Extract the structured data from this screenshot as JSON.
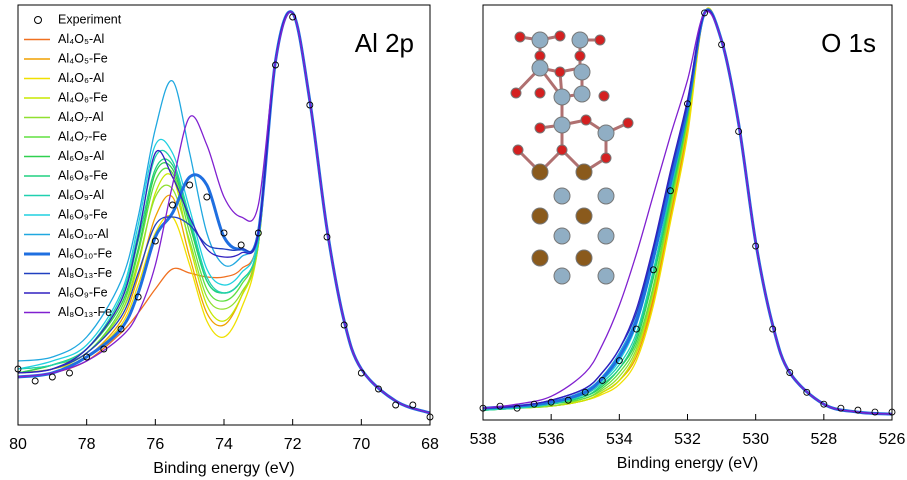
{
  "chart_data": [
    {
      "type": "line",
      "title": "Al 2p",
      "xlabel": "Binding energy (eV)",
      "xlim": [
        80,
        68
      ],
      "xticks": [
        80,
        78,
        76,
        74,
        72,
        70,
        68
      ],
      "ylim": [
        0,
        105
      ],
      "legend": "upper left",
      "x": [
        80,
        79,
        78,
        77,
        76.5,
        76,
        75.5,
        75,
        74.5,
        74,
        73.5,
        73,
        72.5,
        72,
        71.5,
        71,
        70.5,
        70,
        69,
        68
      ],
      "series": [
        {
          "name": "Experiment",
          "marker": "circle",
          "color": "#000000",
          "x": [
            80,
            79.5,
            79,
            78.5,
            78,
            77.5,
            77,
            76.5,
            76,
            75.5,
            75,
            74.5,
            74,
            73.5,
            73,
            72.5,
            72,
            71.5,
            71,
            70.5,
            70,
            69.5,
            69,
            68.5,
            68
          ],
          "values": [
            14,
            11,
            12,
            13,
            17,
            19,
            24,
            32,
            46,
            55,
            60,
            57,
            48,
            45,
            48,
            90,
            102,
            80,
            47,
            25,
            13,
            9,
            5,
            5,
            2
          ]
        },
        {
          "name": "Al₄O₅-Al",
          "color": "#f07020",
          "values": [
            12,
            13,
            16,
            23,
            28,
            34,
            39,
            38,
            37,
            37,
            39,
            47,
            91,
            103,
            81,
            49,
            26,
            14,
            6,
            3
          ]
        },
        {
          "name": "Al₄O₅-Fe",
          "color": "#f0a000",
          "values": [
            13,
            14,
            17,
            26,
            37,
            52,
            57,
            42,
            28,
            25,
            32,
            46,
            91,
            103,
            81,
            49,
            26,
            14,
            6,
            3
          ]
        },
        {
          "name": "Al₄O₆-Al",
          "color": "#f0e000",
          "values": [
            13,
            14,
            17,
            25,
            35,
            48,
            52,
            40,
            26,
            22,
            29,
            45,
            91,
            103,
            81,
            49,
            26,
            14,
            6,
            3
          ]
        },
        {
          "name": "Al₄O₆-Fe",
          "color": "#c8e800",
          "values": [
            13,
            14,
            18,
            28,
            40,
            58,
            62,
            45,
            30,
            26,
            32,
            45,
            91,
            103,
            81,
            49,
            26,
            14,
            6,
            3
          ]
        },
        {
          "name": "Al₄O₇-Al",
          "color": "#90e030",
          "values": [
            13,
            14,
            18,
            28,
            41,
            57,
            59,
            46,
            32,
            29,
            33,
            45,
            91,
            103,
            81,
            49,
            26,
            14,
            6,
            3
          ]
        },
        {
          "name": "Al₄O₇-Fe",
          "color": "#60e040",
          "values": [
            13,
            15,
            18,
            29,
            43,
            61,
            63,
            48,
            34,
            31,
            35,
            46,
            91,
            103,
            81,
            49,
            26,
            14,
            6,
            3
          ]
        },
        {
          "name": "Al₆O₈-Al",
          "color": "#30d050",
          "values": [
            13,
            15,
            19,
            30,
            44,
            63,
            64,
            50,
            36,
            33,
            36,
            46,
            91,
            103,
            81,
            49,
            26,
            14,
            6,
            3
          ]
        },
        {
          "name": "Al₆O₈-Fe",
          "color": "#20d080",
          "values": [
            14,
            15,
            19,
            31,
            46,
            64,
            65,
            51,
            36,
            33,
            36,
            46,
            91,
            103,
            81,
            49,
            26,
            14,
            6,
            3
          ]
        },
        {
          "name": "Al₆O₉-Al",
          "color": "#20d0b0",
          "values": [
            14,
            15,
            19,
            32,
            48,
            67,
            66,
            52,
            37,
            33,
            36,
            46,
            91,
            103,
            81,
            49,
            26,
            14,
            6,
            3
          ]
        },
        {
          "name": "Al₆O₉-Fe",
          "color": "#20d0e0",
          "values": [
            14,
            16,
            20,
            33,
            50,
            70,
            68,
            54,
            39,
            35,
            38,
            47,
            91,
            103,
            81,
            49,
            26,
            14,
            6,
            3
          ]
        },
        {
          "name": "Al₆O₁₀-Al",
          "color": "#20a8e0",
          "values": [
            16,
            17,
            22,
            36,
            52,
            74,
            86,
            68,
            48,
            40,
            42,
            49,
            91,
            103,
            81,
            49,
            26,
            14,
            6,
            3
          ]
        },
        {
          "name": "Al₆O₁₀-Fe",
          "color": "#1f6fe0",
          "linewidth": 3,
          "values": [
            12,
            13,
            17,
            24,
            33,
            47,
            53,
            62,
            60,
            47,
            44,
            48,
            91,
            103,
            81,
            49,
            26,
            14,
            6,
            3
          ]
        },
        {
          "name": "Al₈O₁₃-Fe",
          "color": "#2040c0",
          "values": [
            13,
            14,
            18,
            27,
            38,
            50,
            52,
            50,
            45,
            44,
            44,
            48,
            91,
            103,
            81,
            49,
            26,
            14,
            6,
            3
          ]
        },
        {
          "name": "Al₆O₉-Fe",
          "color": "#3020c0",
          "values": [
            13,
            14,
            19,
            31,
            47,
            68,
            62,
            52,
            44,
            42,
            43,
            48,
            91,
            103,
            81,
            49,
            26,
            14,
            6,
            3
          ]
        },
        {
          "name": "Al₈O₁₃-Fe",
          "color": "#8020d0",
          "values": [
            12,
            13,
            16,
            22,
            28,
            40,
            60,
            77,
            70,
            57,
            52,
            55,
            91,
            103,
            81,
            49,
            26,
            14,
            6,
            3
          ]
        }
      ]
    },
    {
      "type": "line",
      "title": "O 1s",
      "xlabel": "Binding energy (eV)",
      "xlim": [
        538,
        526
      ],
      "xticks": [
        538,
        536,
        534,
        532,
        530,
        528,
        526
      ],
      "ylim": [
        0,
        105
      ],
      "x": [
        538,
        537,
        536,
        535,
        534.5,
        534,
        533.5,
        533,
        532.5,
        532,
        531.5,
        531,
        530.5,
        530,
        529.5,
        529,
        528,
        527,
        526
      ],
      "series": [
        {
          "marker": "circle",
          "color": "#000000",
          "x": [
            538,
            537.5,
            537,
            536.5,
            536,
            535.5,
            535,
            534.5,
            534,
            533.5,
            533,
            532.5,
            532,
            531.5,
            531,
            530.5,
            530,
            529.5,
            529,
            528.5,
            528,
            527.5,
            527,
            526.5,
            526
          ],
          "values": [
            3,
            3.5,
            3,
            4,
            4.5,
            5,
            7,
            10,
            15,
            23,
            38,
            58,
            80,
            103,
            95,
            73,
            44,
            23,
            12,
            7,
            4,
            3,
            2.5,
            2,
            2
          ]
        },
        {
          "color": "#f07020",
          "values": [
            2.5,
            3,
            3.5,
            5,
            7,
            10,
            17,
            31,
            52,
            74,
            103,
            96,
            75,
            45,
            24,
            12,
            4,
            2,
            1.5
          ]
        },
        {
          "color": "#f0a000",
          "values": [
            2.5,
            3,
            3.5,
            5,
            7,
            10,
            16,
            30,
            51,
            73,
            103,
            96,
            75,
            45,
            24,
            12,
            4,
            2,
            1.5
          ]
        },
        {
          "color": "#f0e000",
          "values": [
            2.5,
            3,
            3.5,
            5,
            6.5,
            9,
            15,
            29,
            50,
            72,
            103,
            96,
            75,
            45,
            24,
            12,
            4,
            2,
            1.5
          ]
        },
        {
          "color": "#c8e800",
          "values": [
            2.5,
            3,
            3.5,
            5,
            7,
            10,
            17,
            32,
            53,
            75,
            103,
            96,
            75,
            45,
            24,
            12,
            4,
            2,
            1.5
          ]
        },
        {
          "color": "#90e030",
          "values": [
            2.5,
            3,
            3.5,
            5.5,
            7.5,
            11,
            18,
            33,
            54,
            76,
            103,
            96,
            75,
            45,
            24,
            12,
            4,
            2,
            1.5
          ]
        },
        {
          "color": "#60e040",
          "values": [
            2.5,
            3,
            4,
            5.5,
            8,
            12,
            19,
            34,
            55,
            76,
            103,
            96,
            75,
            45,
            24,
            12,
            4,
            2,
            1.5
          ]
        },
        {
          "color": "#30d050",
          "values": [
            2.5,
            3,
            4,
            6,
            8.5,
            13,
            20,
            36,
            56,
            77,
            103,
            96,
            75,
            45,
            24,
            12,
            4,
            2,
            1.5
          ]
        },
        {
          "color": "#20d080",
          "values": [
            2.5,
            3,
            4,
            6,
            9,
            13,
            21,
            37,
            57,
            78,
            103,
            96,
            75,
            45,
            24,
            12,
            4,
            2,
            1.5
          ]
        },
        {
          "color": "#20d0b0",
          "values": [
            2.5,
            3,
            4,
            6.5,
            9.5,
            14,
            22,
            38,
            58,
            78,
            103,
            96,
            75,
            45,
            24,
            12,
            4,
            2,
            1.5
          ]
        },
        {
          "color": "#20d0e0",
          "values": [
            3,
            3.5,
            4.5,
            7,
            10,
            15,
            24,
            40,
            60,
            79,
            103,
            96,
            75,
            45,
            24,
            12,
            4,
            2,
            1.5
          ]
        },
        {
          "color": "#20a8e0",
          "values": [
            3,
            3.5,
            4.5,
            7.5,
            11,
            17,
            26,
            42,
            61,
            80,
            103,
            96,
            75,
            45,
            24,
            12,
            4,
            2,
            1.5
          ]
        },
        {
          "color": "#1f6fe0",
          "linewidth": 3,
          "values": [
            3,
            3.5,
            4.5,
            7,
            10.5,
            16,
            25,
            41,
            60,
            79,
            103,
            96,
            75,
            45,
            24,
            12,
            4,
            2,
            1.5
          ]
        },
        {
          "color": "#2040c0",
          "values": [
            3,
            3.5,
            5,
            8,
            12,
            18,
            27,
            43,
            62,
            80,
            103,
            96,
            75,
            45,
            24,
            12,
            4,
            2,
            1.5
          ]
        },
        {
          "color": "#3020c0",
          "values": [
            3,
            3.5,
            5,
            8,
            12,
            18,
            28,
            44,
            63,
            81,
            103,
            96,
            75,
            45,
            24,
            12,
            4,
            2,
            1.5
          ]
        },
        {
          "color": "#8020d0",
          "values": [
            3,
            4,
            6,
            12,
            19,
            29,
            42,
            57,
            72,
            86,
            103,
            96,
            75,
            45,
            24,
            12,
            4,
            2,
            1.5
          ]
        }
      ]
    }
  ]
}
